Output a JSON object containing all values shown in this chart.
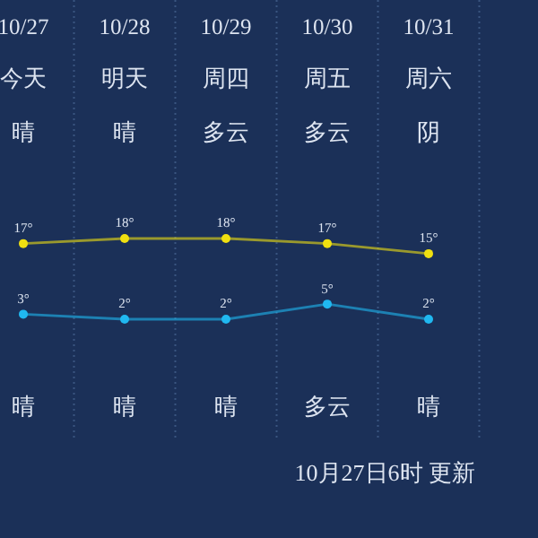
{
  "chart_data": {
    "type": "line",
    "categories": [
      "10/27",
      "10/28",
      "10/29",
      "10/30",
      "10/31"
    ],
    "series": [
      {
        "color": "#f0e010",
        "values": [
          17,
          18,
          18,
          17,
          15
        ],
        "value_labels": [
          "17°",
          "18°",
          "18°",
          "17°",
          "15°"
        ]
      },
      {
        "color": "#20b8f0",
        "values": [
          3,
          2,
          2,
          5,
          2
        ],
        "value_labels": [
          "3°",
          "2°",
          "2°",
          "5°",
          "2°"
        ]
      }
    ],
    "tick_labels": "x",
    "grid": "x",
    "marker": "circle",
    "line_style": "solid",
    "annotations": [
      "今天",
      "明天",
      "周四",
      "周五",
      "周六",
      "晴",
      "晴",
      "多云",
      "多云",
      "阴",
      "晴",
      "晴",
      "晴",
      "多云",
      "晴",
      "10月27日6时 更新"
    ]
  }
}
